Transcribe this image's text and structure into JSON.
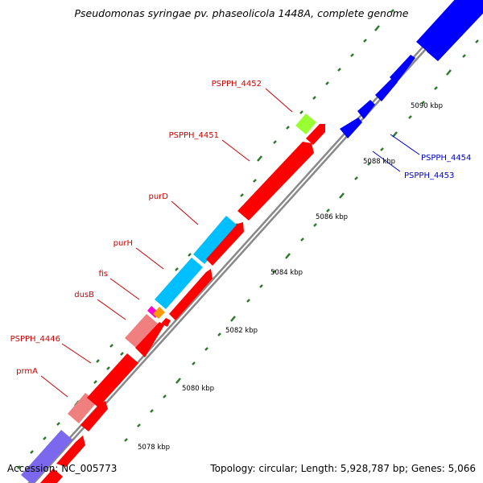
{
  "title": "Pseudomonas syringae pv. phaseolicola 1448A, complete genome",
  "accession": "Accession: NC_005773",
  "topology": "Topology: circular; Length: 5,928,787 bp; Genes: 5,066",
  "scale_labels": [
    "5078 kbp",
    "5080 kbp",
    "5082 kbp",
    "5084 kbp",
    "5086 kbp",
    "5088 kbp",
    "5090 kbp"
  ],
  "gene_labels": [
    "PSPPH_4452",
    "PSPPH_4451",
    "purD",
    "purH",
    "fis",
    "dusB",
    "PSPPH_4446",
    "prmA",
    "PSPPH_4454",
    "PSPPH_4453"
  ],
  "colors": {
    "cds": "#ff0000",
    "cds_light": "#f08080",
    "cds_cyan": "#00bfff",
    "cds_blue": "#0000ff",
    "cds_green": "#99ff33",
    "cds_purple": "#7b68ee",
    "cds_magenta": "#ff00cc",
    "cds_orange": "#ff9900",
    "backbone": "#999999",
    "tick": "#2d7a2d"
  }
}
